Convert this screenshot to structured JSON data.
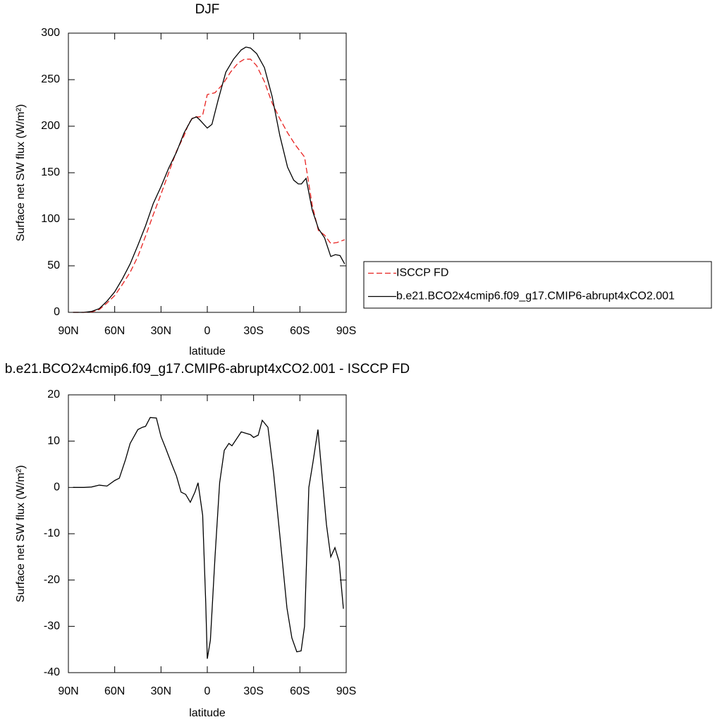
{
  "chart_data": [
    {
      "type": "line",
      "title": "DJF",
      "x_label": "latitude",
      "y_label": "Surface net SW flux (W/m²)",
      "xlim": [
        90,
        -90
      ],
      "xticks": [
        {
          "value": 90,
          "label": "90N"
        },
        {
          "value": 60,
          "label": "60N"
        },
        {
          "value": 30,
          "label": "30N"
        },
        0,
        {
          "value": -30,
          "label": "30S"
        },
        {
          "value": -60,
          "label": "60S"
        },
        {
          "value": -90,
          "label": "90S"
        }
      ],
      "ylim": [
        0,
        300
      ],
      "yticks": [
        0,
        50,
        100,
        150,
        200,
        250,
        300
      ],
      "legend": "right",
      "series": [
        {
          "name": "ISCCP FD",
          "color": "#e8211f",
          "dash": "dashed",
          "x": [
            87,
            80,
            75,
            70,
            65,
            60,
            55,
            50,
            45,
            40,
            35,
            30,
            25,
            20,
            15,
            12,
            9,
            5,
            3,
            0,
            -5,
            -10,
            -15,
            -20,
            -24,
            -28,
            -32,
            -37,
            -42,
            -47,
            -52,
            -57,
            -63,
            -68,
            -72,
            -76,
            -80,
            -84,
            -89
          ],
          "values": [
            0,
            0,
            0.5,
            3,
            10,
            18,
            30,
            43,
            60,
            82,
            105,
            127,
            150,
            173,
            190,
            203,
            210,
            210,
            212,
            234,
            236,
            245,
            258,
            268,
            272,
            272,
            265,
            248,
            225,
            208,
            193,
            180,
            167,
            115,
            88,
            83,
            74,
            75,
            78
          ]
        },
        {
          "name": "b.e21.BCO2x4cmip6.f09_g17.CMIP6-abrupt4xCO2.001",
          "color": "#000000",
          "dash": "solid",
          "x": [
            87,
            80,
            75,
            70,
            65,
            60,
            55,
            50,
            45,
            40,
            35,
            30,
            25,
            20,
            15,
            10,
            7,
            5,
            0,
            -3,
            -7,
            -12,
            -17,
            -22,
            -25,
            -28,
            -32,
            -37,
            -42,
            -47,
            -52,
            -56,
            -59,
            -61,
            -64,
            -68,
            -72,
            -76,
            -80,
            -83,
            -86,
            -89
          ],
          "values": [
            0,
            0,
            1,
            4,
            12,
            22,
            36,
            52,
            72,
            93,
            117,
            135,
            155,
            172,
            193,
            208,
            210,
            207,
            198,
            202,
            228,
            258,
            272,
            282,
            285,
            284,
            278,
            263,
            232,
            190,
            156,
            142,
            138,
            138,
            144,
            110,
            90,
            80,
            60,
            62,
            61,
            52
          ]
        }
      ]
    },
    {
      "type": "line",
      "title": "b.e21.BCO2x4cmip6.f09_g17.CMIP6-abrupt4xCO2.001 - ISCCP FD",
      "x_label": "latitude",
      "y_label": "Surface net SW flux (W/m²)",
      "xlim": [
        90,
        -90
      ],
      "xticks": [
        {
          "value": 90,
          "label": "90N"
        },
        {
          "value": 60,
          "label": "60N"
        },
        {
          "value": 30,
          "label": "30N"
        },
        0,
        {
          "value": -30,
          "label": "30S"
        },
        {
          "value": -60,
          "label": "60S"
        },
        {
          "value": -90,
          "label": "90S"
        }
      ],
      "ylim": [
        -40,
        20
      ],
      "yticks": [
        -40,
        -30,
        -20,
        -10,
        0,
        10,
        20
      ],
      "color": "#000000",
      "x": [
        87,
        80,
        75,
        70,
        65,
        60,
        57,
        53,
        50,
        45,
        42,
        40,
        37,
        33,
        30,
        27,
        23,
        20,
        17,
        14,
        11,
        8,
        6,
        3,
        1,
        0,
        -2,
        -5,
        -8,
        -11,
        -14,
        -16,
        -19,
        -22,
        -25,
        -28,
        -30,
        -33,
        -35.6,
        -39.3,
        -43,
        -47.5,
        -51.6,
        -54.8,
        -58,
        -60.8,
        -63,
        -65.8,
        -68.5,
        -71.7,
        -74.5,
        -77.2,
        -80,
        -82.7,
        -85.4,
        -88.2
      ],
      "values": [
        0,
        0,
        0.1,
        0.5,
        0.3,
        1.5,
        2,
        6,
        9.5,
        12.5,
        13,
        13.2,
        15.1,
        15,
        11,
        8.5,
        5,
        2.5,
        -1,
        -1.5,
        -3.2,
        -1,
        1,
        -6,
        -25,
        -37,
        -33,
        -15,
        1,
        8,
        9.5,
        9,
        10.5,
        12,
        11.7,
        11.4,
        10.8,
        11.3,
        14.5,
        13,
        3,
        -12,
        -26,
        -32.5,
        -35.5,
        -35.3,
        -30,
        0,
        5.5,
        12.5,
        2,
        -8,
        -15,
        -13,
        -16,
        -26.2
      ]
    }
  ]
}
